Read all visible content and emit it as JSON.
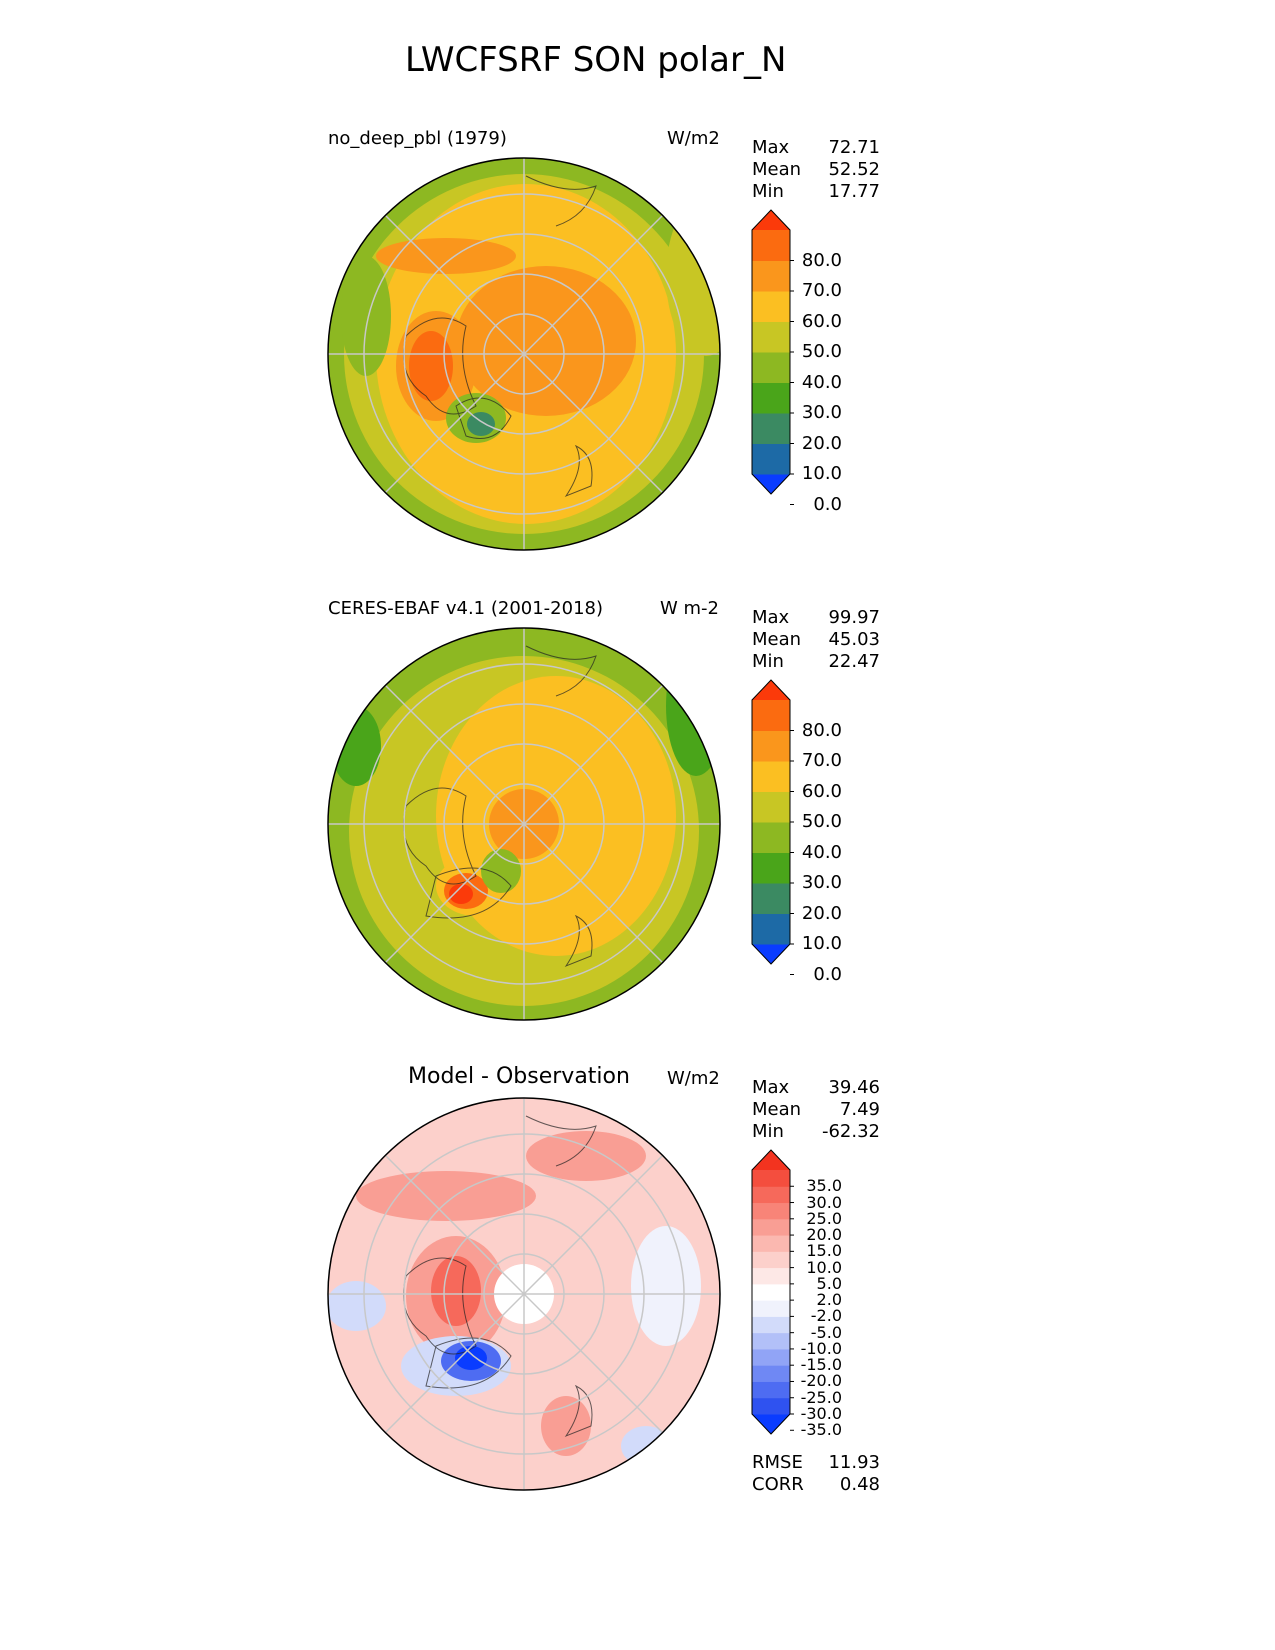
{
  "page_title": "LWCFSRF SON polar_N",
  "panels": [
    {
      "left_label": "no_deep_pbl (1979)",
      "units": "W/m2",
      "stats": {
        "max_label": "Max",
        "max": "72.71",
        "mean_label": "Mean",
        "mean": "52.52",
        "min_label": "Min",
        "min": "17.77"
      },
      "colorbar": {
        "ticks": [
          "80.0",
          "70.0",
          "60.0",
          "50.0",
          "40.0",
          "30.0",
          "20.0",
          "10.0",
          "0.0"
        ],
        "colors": [
          "#0a3cff",
          "#1d6aa6",
          "#3b8a62",
          "#4aa51a",
          "#8db822",
          "#c8c624",
          "#fbbf22",
          "#fa961c",
          "#fb6b10",
          "#fb3a0a"
        ]
      }
    },
    {
      "left_label": "CERES-EBAF v4.1 (2001-2018)",
      "units": "W m-2",
      "stats": {
        "max_label": "Max",
        "max": "99.97",
        "mean_label": "Mean",
        "mean": "45.03",
        "min_label": "Min",
        "min": "22.47"
      },
      "colorbar": {
        "ticks": [
          "80.0",
          "70.0",
          "60.0",
          "50.0",
          "40.0",
          "30.0",
          "20.0",
          "10.0",
          "0.0"
        ],
        "colors": [
          "#0a3cff",
          "#1d6aa6",
          "#3b8a62",
          "#4aa51a",
          "#8db822",
          "#c8c624",
          "#fbbf22",
          "#fa961c",
          "#fb6b10",
          "#fb3a0a"
        ]
      }
    },
    {
      "center_title": "Model - Observation",
      "units": "W/m2",
      "stats": {
        "max_label": "Max",
        "max": "39.46",
        "mean_label": "Mean",
        "mean": "7.49",
        "min_label": "Min",
        "min": "-62.32"
      },
      "colorbar": {
        "ticks": [
          "35.0",
          "30.0",
          "25.0",
          "20.0",
          "15.0",
          "10.0",
          "5.0",
          "2.0",
          "-2.0",
          "-5.0",
          "-10.0",
          "-15.0",
          "-20.0",
          "-25.0",
          "-30.0",
          "-35.0"
        ],
        "colors": [
          "#0a3cff",
          "#2f52f0",
          "#4e6cf2",
          "#6f88f4",
          "#91a4f6",
          "#b2c0f8",
          "#d2dbfa",
          "#f0f2fc",
          "#ffffff",
          "#fde8e6",
          "#fcd0cb",
          "#fbb8b0",
          "#f99e94",
          "#f88478",
          "#f6695b",
          "#f44e3e",
          "#f3331f"
        ]
      },
      "metrics": {
        "rmse_label": "RMSE",
        "rmse": "11.93",
        "corr_label": "CORR",
        "corr": "0.48"
      }
    }
  ]
}
